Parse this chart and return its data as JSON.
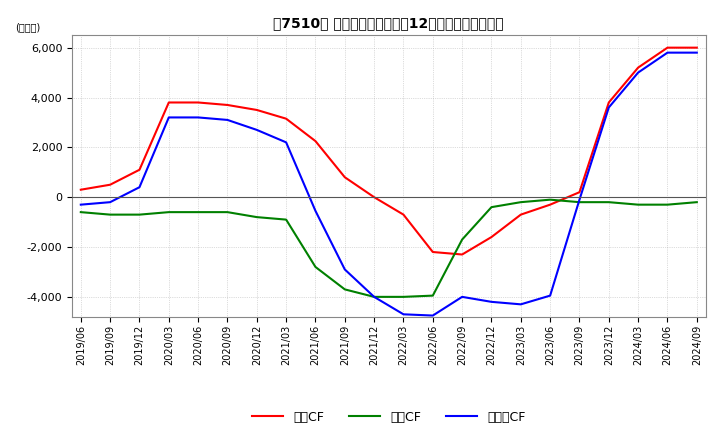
{
  "title": "【7510】 キャッシュフローの12か月移動合計の推移",
  "ylabel": "(百万円)",
  "ylim": [
    -4800,
    6500
  ],
  "yticks": [
    -4000,
    -2000,
    0,
    2000,
    4000,
    6000
  ],
  "x_labels": [
    "2019/06",
    "2019/09",
    "2019/12",
    "2020/03",
    "2020/06",
    "2020/09",
    "2020/12",
    "2021/03",
    "2021/06",
    "2021/09",
    "2021/12",
    "2022/03",
    "2022/06",
    "2022/09",
    "2022/12",
    "2023/03",
    "2023/06",
    "2023/09",
    "2023/12",
    "2024/03",
    "2024/06",
    "2024/09"
  ],
  "operating_cf": [
    300,
    500,
    1100,
    3800,
    3800,
    3700,
    3500,
    3150,
    2250,
    800,
    0,
    -700,
    -2200,
    -2300,
    -1600,
    -700,
    -300,
    200,
    3800,
    5200,
    6000,
    6000
  ],
  "investing_cf": [
    -600,
    -700,
    -700,
    -600,
    -600,
    -600,
    -800,
    -900,
    -2800,
    -3700,
    -4000,
    -4000,
    -3950,
    -1700,
    -400,
    -200,
    -100,
    -200,
    -200,
    -300,
    -300,
    -200
  ],
  "free_cf": [
    -300,
    -200,
    400,
    3200,
    3200,
    3100,
    2700,
    2200,
    -550,
    -2900,
    -4000,
    -4700,
    -4750,
    -4000,
    -4200,
    -4300,
    -3950,
    -100,
    3600,
    5000,
    5800,
    5800
  ],
  "operating_color": "#ff0000",
  "investing_color": "#008000",
  "free_color": "#0000ff",
  "background_color": "#ffffff",
  "grid_color": "#aaaaaa",
  "legend_labels": [
    "営業CF",
    "投資CF",
    "フリーCF"
  ]
}
